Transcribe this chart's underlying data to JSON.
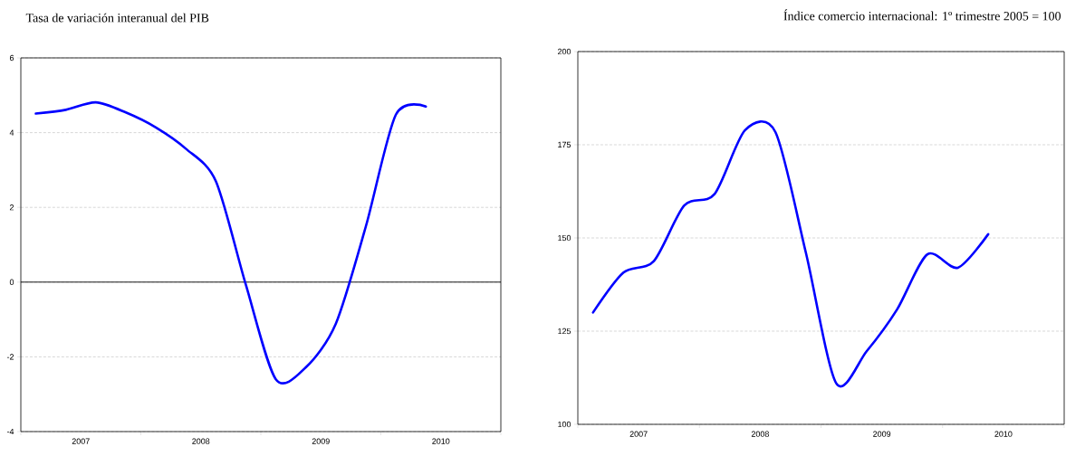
{
  "chart_data": [
    {
      "type": "line",
      "title": "Tasa de variación interanual del PIB",
      "x": [
        2007.125,
        2007.375,
        2007.625,
        2007.875,
        2008.125,
        2008.375,
        2008.625,
        2008.875,
        2009.125,
        2009.375,
        2009.625,
        2009.875,
        2010.125,
        2010.375
      ],
      "series": [
        {
          "color": "#0000ff",
          "values": [
            4.51,
            4.61,
            4.81,
            4.54,
            4.14,
            3.57,
            2.7,
            -0.07,
            -2.6,
            -2.28,
            -1.11,
            1.49,
            4.48,
            4.7
          ]
        }
      ],
      "xlim": [
        2007,
        2011
      ],
      "xticks": [
        {
          "value": 2007,
          "label": null
        },
        {
          "value": 2007.5,
          "label": "2007"
        },
        {
          "value": 2008,
          "label": null
        },
        {
          "value": 2008.5,
          "label": "2008"
        },
        {
          "value": 2009,
          "label": null
        },
        {
          "value": 2009.5,
          "label": "2009"
        },
        {
          "value": 2010,
          "label": null
        },
        {
          "value": 2010.5,
          "label": "2010"
        },
        {
          "value": 2011,
          "label": null
        }
      ],
      "ylim": [
        -4,
        6
      ],
      "yticks": [
        -4,
        -2,
        0,
        2,
        4,
        6
      ],
      "ref_lines": [
        {
          "axis": "y",
          "value": 0,
          "color": "#000000"
        }
      ],
      "grid": "y",
      "marker": "none",
      "line_style": "solid"
    },
    {
      "type": "line",
      "title": "Índice comercio internacional: 1º trimestre 2005 = 100",
      "x": [
        2007.125,
        2007.375,
        2007.625,
        2007.875,
        2008.125,
        2008.375,
        2008.625,
        2008.875,
        2009.125,
        2009.375,
        2009.625,
        2009.875,
        2010.125,
        2010.375
      ],
      "series": [
        {
          "color": "#0000ff",
          "values": [
            130,
            140.7,
            143.8,
            158.7,
            161.8,
            178.9,
            178.4,
            146.1,
            111,
            119.6,
            130.8,
            145.6,
            142,
            151
          ]
        }
      ],
      "xlim": [
        2007,
        2011
      ],
      "xticks": [
        {
          "value": 2007,
          "label": null
        },
        {
          "value": 2007.5,
          "label": "2007"
        },
        {
          "value": 2008,
          "label": null
        },
        {
          "value": 2008.5,
          "label": "2008"
        },
        {
          "value": 2009,
          "label": null
        },
        {
          "value": 2009.5,
          "label": "2009"
        },
        {
          "value": 2010,
          "label": null
        },
        {
          "value": 2010.5,
          "label": "2010"
        },
        {
          "value": 2011,
          "label": null
        }
      ],
      "ylim": [
        100,
        200
      ],
      "yticks": [
        100,
        125,
        150,
        175,
        200
      ],
      "grid": "y",
      "marker": "none",
      "line_style": "solid"
    }
  ]
}
